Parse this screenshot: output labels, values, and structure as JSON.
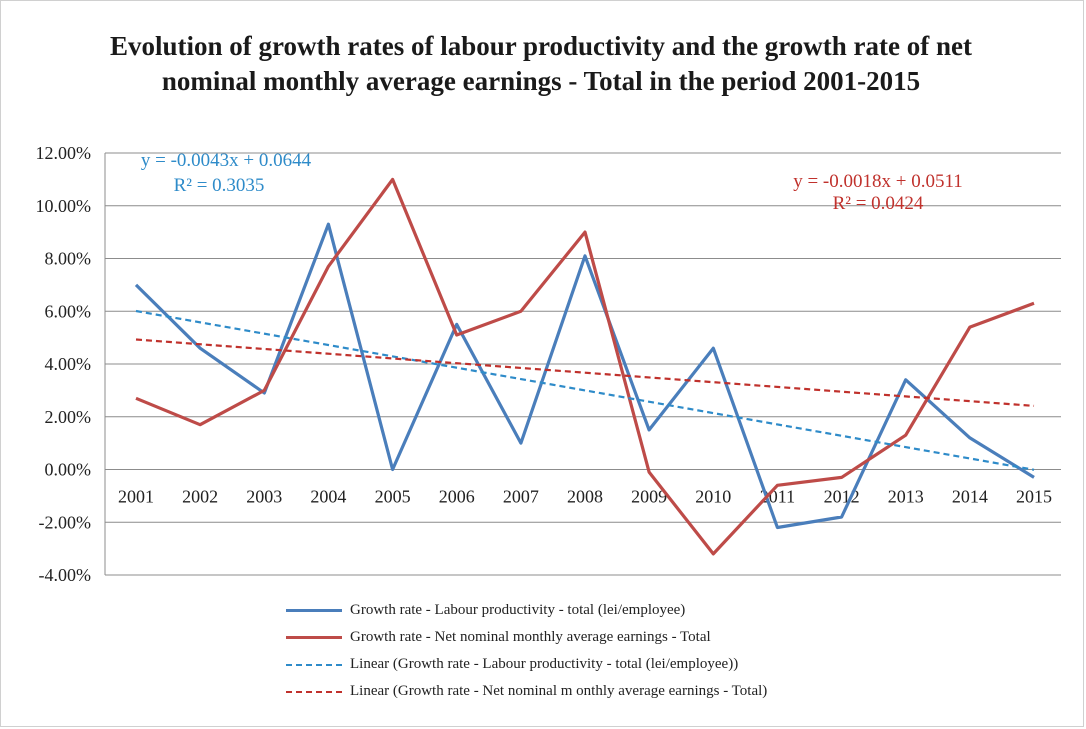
{
  "chart_data": {
    "type": "line",
    "title": "Evolution  of growth rates of labour productivity and the growth rate of net nominal monthly average  earnings - Total in the period 2001-2015",
    "categories": [
      "2001",
      "2002",
      "2003",
      "2004",
      "2005",
      "2006",
      "2007",
      "2008",
      "2009",
      "2010",
      "2011",
      "2012",
      "2013",
      "2014",
      "2015"
    ],
    "ylim": [
      -0.04,
      0.12
    ],
    "y_ticks": [
      -0.04,
      -0.02,
      0.0,
      0.02,
      0.04,
      0.06,
      0.08,
      0.1,
      0.12
    ],
    "y_tick_labels": [
      "-4.00%",
      "-2.00%",
      "0.00%",
      "2.00%",
      "4.00%",
      "6.00%",
      "8.00%",
      "10.00%",
      "12.00%"
    ],
    "grid": true,
    "legend_position": "bottom",
    "series": [
      {
        "name": "Growth rate - Labour productivity - total (lei/employee)",
        "style": "solid",
        "color": "#4a7ebb",
        "values": [
          0.07,
          0.046,
          0.029,
          0.093,
          0.0,
          0.055,
          0.01,
          0.081,
          0.015,
          0.046,
          -0.022,
          -0.018,
          0.034,
          0.012,
          -0.003
        ]
      },
      {
        "name": "Growth rate - Net nominal monthly average  earnings - Total",
        "style": "solid",
        "color": "#be4b48",
        "values": [
          0.027,
          0.017,
          0.03,
          0.077,
          0.11,
          0.051,
          0.06,
          0.09,
          -0.001,
          -0.032,
          -0.006,
          -0.003,
          0.013,
          0.054,
          0.063
        ]
      },
      {
        "name": "Linear (Growth rate - Labour productivity - total (lei/employee))",
        "style": "dashed",
        "color": "#2e8bc9",
        "trend": {
          "slope": -0.0043,
          "intercept": 0.0644
        },
        "equation": "y = -0.0043x + 0.0644",
        "r2": "R² = 0.3035"
      },
      {
        "name": "Linear (Growth rate - Net nominal m onthly average  earnings - Total)",
        "style": "dashed",
        "color": "#c0312c",
        "trend": {
          "slope": -0.0018,
          "intercept": 0.0511
        },
        "equation": "y = -0.0018x + 0.0511",
        "r2": "R² = 0.0424"
      }
    ]
  }
}
